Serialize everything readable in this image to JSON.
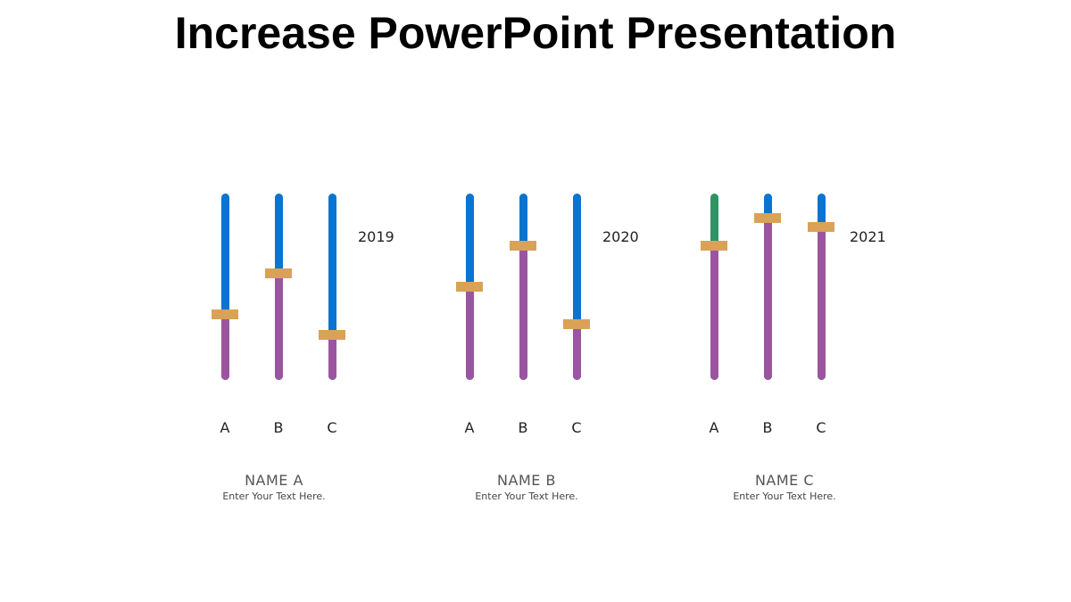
{
  "title": "Increase PowerPoint Presentation",
  "colors": {
    "upper_default": "#0a74d1",
    "upper_highlight": "#2e9466",
    "lower": "#9b55a0",
    "handle": "#d9a256"
  },
  "groups": [
    {
      "year": "2019",
      "name": "NAME A",
      "desc": "Enter Your Text Here.",
      "categories": [
        "A",
        "B",
        "C"
      ],
      "values": [
        35,
        57,
        24
      ],
      "upper_colors": [
        "#0a74d1",
        "#0a74d1",
        "#0a74d1"
      ]
    },
    {
      "year": "2020",
      "name": "NAME B",
      "desc": "Enter Your Text Here.",
      "categories": [
        "A",
        "B",
        "C"
      ],
      "values": [
        50,
        72,
        30
      ],
      "upper_colors": [
        "#0a74d1",
        "#0a74d1",
        "#0a74d1"
      ]
    },
    {
      "year": "2021",
      "name": "NAME C",
      "desc": "Enter Your Text Here.",
      "categories": [
        "A",
        "B",
        "C"
      ],
      "values": [
        72,
        87,
        82
      ],
      "upper_colors": [
        "#2e9466",
        "#0a74d1",
        "#0a74d1"
      ]
    }
  ],
  "chart_data": {
    "type": "bar",
    "title": "Increase PowerPoint Presentation",
    "categories": [
      "A",
      "B",
      "C"
    ],
    "series": [
      {
        "name": "2019",
        "values": [
          35,
          57,
          24
        ]
      },
      {
        "name": "2020",
        "values": [
          50,
          72,
          30
        ]
      },
      {
        "name": "2021",
        "values": [
          72,
          87,
          82
        ]
      }
    ],
    "xlabel": "",
    "ylabel": "",
    "ylim": [
      0,
      100
    ],
    "grid": false,
    "group_labels": [
      "NAME A",
      "NAME B",
      "NAME C"
    ],
    "group_descriptions": [
      "Enter Your Text Here.",
      "Enter Your Text Here.",
      "Enter Your Text Here."
    ]
  }
}
